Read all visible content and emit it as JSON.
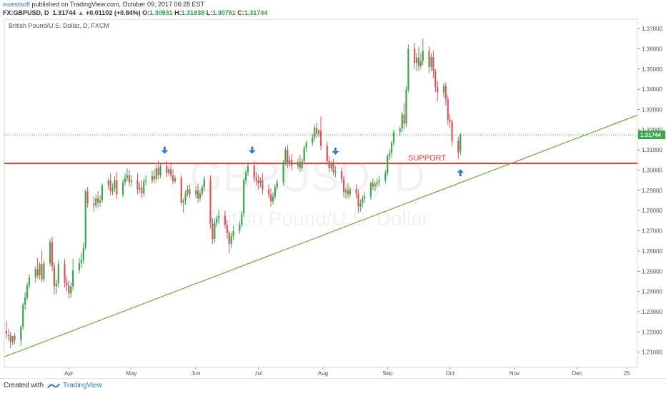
{
  "header": {
    "author": "investsoft",
    "published": " published on TradingView.com, October 09, 2017 06:28 EST",
    "symbol": "FX:GBPUSD, D",
    "last": "1.31744",
    "change": "+0.01102 (+0.84%)",
    "o_label": "O:",
    "o": "1.30931",
    "h_label": "H:",
    "h": "1.31838",
    "l_label": "L:",
    "l": "1.30751",
    "c_label": "C:",
    "c": "1.31744"
  },
  "footer": {
    "created_with": "Created with",
    "brand": "TradingView"
  },
  "colors": {
    "up": "#3aa64a",
    "down": "#e0505c",
    "support": "#e53935",
    "trend": "#6aaa3c",
    "arrow": "#2f7fc8",
    "price_tag": "#3aa64a"
  },
  "chart_data": {
    "type": "candlestick",
    "title": "British Pound/U.S. Dollar, D, FXCM",
    "watermark": "GBPUSD, D",
    "watermark_sub": "British Pound/U.S. Dollar",
    "y_ticks": [
      "1.21000",
      "1.22000",
      "1.23000",
      "1.24000",
      "1.25000",
      "1.26000",
      "1.27000",
      "1.28000",
      "1.29000",
      "1.30000",
      "1.31000",
      "1.32000",
      "1.33000",
      "1.34000",
      "1.35000",
      "1.36000",
      "1.37000"
    ],
    "ylim": [
      1.2025,
      1.3746
    ],
    "x_ticks": [
      "Apr",
      "May",
      "Jun",
      "Jul",
      "Aug",
      "Sep",
      "Oct",
      "Nov",
      "Dec",
      "25"
    ],
    "x_tick_days": [
      31,
      61,
      92,
      122,
      153,
      184,
      214,
      245,
      275,
      299
    ],
    "xlim": [
      0,
      304
    ],
    "last_price": 1.31744,
    "last_price_label": "1.31744",
    "support": {
      "value": 1.3033,
      "label": "SUPPORT"
    },
    "trendline": {
      "from": [
        0,
        1.2077
      ],
      "to": [
        304,
        1.3272
      ]
    },
    "arrows": [
      {
        "day": 77,
        "price": 1.3088,
        "dir": "down"
      },
      {
        "day": 119,
        "price": 1.3088,
        "dir": "down"
      },
      {
        "day": 159,
        "price": 1.3083,
        "dir": "down"
      },
      {
        "day": 219,
        "price": 1.2998,
        "dir": "up"
      }
    ],
    "candles": [
      [
        1,
        1.2205,
        1.2255,
        1.219,
        1.2165
      ],
      [
        2,
        1.218,
        1.2215,
        1.2185,
        1.2155
      ],
      [
        3,
        1.2185,
        1.22,
        1.215,
        1.212
      ],
      [
        4,
        1.215,
        1.2165,
        1.218,
        1.2135
      ],
      [
        5,
        1.218,
        1.2195,
        1.216,
        1.214
      ],
      [
        8,
        1.216,
        1.2235,
        1.2225,
        1.213
      ],
      [
        9,
        1.2225,
        1.2345,
        1.2335,
        1.221
      ],
      [
        10,
        1.2335,
        1.2395,
        1.237,
        1.231
      ],
      [
        11,
        1.237,
        1.2445,
        1.243,
        1.2355
      ],
      [
        12,
        1.243,
        1.2485,
        1.247,
        1.2415
      ],
      [
        15,
        1.247,
        1.2525,
        1.251,
        1.2445
      ],
      [
        16,
        1.251,
        1.2565,
        1.248,
        1.2465
      ],
      [
        17,
        1.248,
        1.2545,
        1.2535,
        1.246
      ],
      [
        18,
        1.2535,
        1.2605,
        1.246,
        1.2445
      ],
      [
        19,
        1.246,
        1.2555,
        1.254,
        1.2445
      ],
      [
        22,
        1.254,
        1.266,
        1.2645,
        1.2525
      ],
      [
        23,
        1.2645,
        1.267,
        1.2525,
        1.25
      ],
      [
        24,
        1.2525,
        1.2545,
        1.2425,
        1.2385
      ],
      [
        25,
        1.2425,
        1.246,
        1.244,
        1.2385
      ],
      [
        26,
        1.244,
        1.2555,
        1.2535,
        1.242
      ],
      [
        29,
        1.2535,
        1.256,
        1.2445,
        1.242
      ],
      [
        30,
        1.2445,
        1.2475,
        1.243,
        1.24
      ],
      [
        31,
        1.243,
        1.2455,
        1.239,
        1.2365
      ],
      [
        32,
        1.239,
        1.2445,
        1.2425,
        1.237
      ],
      [
        33,
        1.2425,
        1.256,
        1.2505,
        1.2405
      ],
      [
        36,
        1.2505,
        1.2565,
        1.254,
        1.249
      ],
      [
        37,
        1.254,
        1.259,
        1.2555,
        1.2515
      ],
      [
        38,
        1.2555,
        1.264,
        1.2615,
        1.2535
      ],
      [
        39,
        1.2615,
        1.2905,
        1.2895,
        1.2605
      ],
      [
        40,
        1.2895,
        1.2915,
        1.2835,
        1.2815
      ],
      [
        43,
        1.2835,
        1.287,
        1.2825,
        1.2795
      ],
      [
        44,
        1.2825,
        1.288,
        1.286,
        1.281
      ],
      [
        45,
        1.286,
        1.2895,
        1.284,
        1.2815
      ],
      [
        46,
        1.284,
        1.2875,
        1.285,
        1.282
      ],
      [
        47,
        1.285,
        1.2935,
        1.2925,
        1.284
      ],
      [
        50,
        1.2925,
        1.296,
        1.295,
        1.2905
      ],
      [
        51,
        1.295,
        1.2985,
        1.2895,
        1.2875
      ],
      [
        52,
        1.2895,
        1.2935,
        1.291,
        1.2875
      ],
      [
        53,
        1.291,
        1.297,
        1.295,
        1.289
      ],
      [
        54,
        1.295,
        1.299,
        1.288,
        1.286
      ],
      [
        57,
        1.288,
        1.2955,
        1.294,
        1.2865
      ],
      [
        58,
        1.294,
        1.2985,
        1.296,
        1.2925
      ],
      [
        59,
        1.296,
        1.301,
        1.2975,
        1.2945
      ],
      [
        60,
        1.2975,
        1.3,
        1.294,
        1.292
      ],
      [
        61,
        1.294,
        1.2975,
        1.295,
        1.292
      ],
      [
        64,
        1.295,
        1.2985,
        1.2905,
        1.288
      ],
      [
        65,
        1.2905,
        1.294,
        1.2915,
        1.2885
      ],
      [
        66,
        1.2915,
        1.295,
        1.2885,
        1.286
      ],
      [
        67,
        1.2885,
        1.296,
        1.2945,
        1.287
      ],
      [
        68,
        1.2945,
        1.2975,
        1.295,
        1.2925
      ],
      [
        71,
        1.295,
        1.2995,
        1.297,
        1.2935
      ],
      [
        72,
        1.297,
        1.3005,
        1.2955,
        1.2935
      ],
      [
        73,
        1.2955,
        1.3025,
        1.301,
        1.294
      ],
      [
        74,
        1.301,
        1.3045,
        1.2975,
        1.2955
      ],
      [
        75,
        1.2975,
        1.303,
        1.302,
        1.296
      ],
      [
        78,
        1.302,
        1.3045,
        1.2985,
        1.2965
      ],
      [
        79,
        1.2985,
        1.302,
        1.3005,
        1.297
      ],
      [
        80,
        1.3005,
        1.304,
        1.2975,
        1.296
      ],
      [
        81,
        1.2975,
        1.3005,
        1.2945,
        1.293
      ],
      [
        82,
        1.2945,
        1.2975,
        1.296,
        1.2935
      ],
      [
        85,
        1.296,
        1.2975,
        1.284,
        1.2825
      ],
      [
        86,
        1.284,
        1.286,
        1.285,
        1.279
      ],
      [
        87,
        1.285,
        1.29,
        1.2885,
        1.283
      ],
      [
        88,
        1.2885,
        1.2925,
        1.2905,
        1.287
      ],
      [
        89,
        1.2905,
        1.293,
        1.288,
        1.286
      ],
      [
        92,
        1.288,
        1.292,
        1.29,
        1.286
      ],
      [
        93,
        1.29,
        1.2935,
        1.286,
        1.284
      ],
      [
        94,
        1.286,
        1.29,
        1.2885,
        1.2845
      ],
      [
        95,
        1.2885,
        1.293,
        1.2915,
        1.287
      ],
      [
        96,
        1.2915,
        1.297,
        1.2955,
        1.2895
      ],
      [
        99,
        1.2955,
        1.2975,
        1.2735,
        1.271
      ],
      [
        100,
        1.2735,
        1.276,
        1.266,
        1.2635
      ],
      [
        101,
        1.266,
        1.276,
        1.274,
        1.264
      ],
      [
        102,
        1.274,
        1.2775,
        1.276,
        1.272
      ],
      [
        103,
        1.276,
        1.2805,
        1.2775,
        1.2735
      ],
      [
        106,
        1.2775,
        1.28,
        1.273,
        1.271
      ],
      [
        107,
        1.273,
        1.2755,
        1.269,
        1.266
      ],
      [
        108,
        1.269,
        1.27,
        1.2635,
        1.259
      ],
      [
        109,
        1.2635,
        1.269,
        1.2675,
        1.2615
      ],
      [
        110,
        1.2675,
        1.2725,
        1.27,
        1.2655
      ],
      [
        113,
        1.27,
        1.2745,
        1.273,
        1.2685
      ],
      [
        114,
        1.273,
        1.28,
        1.2785,
        1.2715
      ],
      [
        115,
        1.2785,
        1.296,
        1.295,
        1.277
      ],
      [
        116,
        1.295,
        1.3,
        1.299,
        1.293
      ],
      [
        117,
        1.299,
        1.304,
        1.302,
        1.297
      ],
      [
        120,
        1.302,
        1.3045,
        1.296,
        1.294
      ],
      [
        121,
        1.296,
        1.299,
        1.295,
        1.2925
      ],
      [
        122,
        1.295,
        1.2975,
        1.2935,
        1.2905
      ],
      [
        123,
        1.2935,
        1.2965,
        1.295,
        1.2915
      ],
      [
        124,
        1.295,
        1.2985,
        1.2905,
        1.288
      ],
      [
        127,
        1.2905,
        1.293,
        1.288,
        1.286
      ],
      [
        128,
        1.288,
        1.291,
        1.2845,
        1.282
      ],
      [
        129,
        1.2845,
        1.289,
        1.287,
        1.283
      ],
      [
        130,
        1.287,
        1.293,
        1.2915,
        1.2855
      ],
      [
        131,
        1.2915,
        1.2955,
        1.294,
        1.29
      ],
      [
        134,
        1.294,
        1.305,
        1.304,
        1.2925
      ],
      [
        135,
        1.304,
        1.3115,
        1.31,
        1.3025
      ],
      [
        136,
        1.31,
        1.3125,
        1.303,
        1.301
      ],
      [
        137,
        1.303,
        1.307,
        1.305,
        1.3015
      ],
      [
        138,
        1.305,
        1.308,
        1.302,
        1.3
      ],
      [
        141,
        1.302,
        1.3055,
        1.304,
        1.3005
      ],
      [
        142,
        1.304,
        1.3075,
        1.301,
        1.299
      ],
      [
        143,
        1.301,
        1.306,
        1.3045,
        1.2995
      ],
      [
        144,
        1.3045,
        1.312,
        1.311,
        1.303
      ],
      [
        145,
        1.311,
        1.3145,
        1.3135,
        1.309
      ],
      [
        148,
        1.3135,
        1.318,
        1.316,
        1.312
      ],
      [
        149,
        1.316,
        1.3225,
        1.321,
        1.3145
      ],
      [
        150,
        1.321,
        1.3235,
        1.318,
        1.316
      ],
      [
        151,
        1.318,
        1.3205,
        1.3195,
        1.3165
      ],
      [
        152,
        1.3195,
        1.3265,
        1.312,
        1.31
      ],
      [
        155,
        1.312,
        1.314,
        1.3045,
        1.3025
      ],
      [
        156,
        1.3045,
        1.307,
        1.301,
        1.299
      ],
      [
        157,
        1.301,
        1.3045,
        1.303,
        1.2995
      ],
      [
        158,
        1.303,
        1.3055,
        1.299,
        1.2975
      ],
      [
        159,
        1.299,
        1.302,
        1.2995,
        1.2965
      ],
      [
        162,
        1.2995,
        1.3015,
        1.2955,
        1.2935
      ],
      [
        163,
        1.2955,
        1.297,
        1.289,
        1.2865
      ],
      [
        164,
        1.289,
        1.2915,
        1.29,
        1.286
      ],
      [
        165,
        1.29,
        1.2935,
        1.288,
        1.286
      ],
      [
        166,
        1.288,
        1.292,
        1.2905,
        1.2865
      ],
      [
        169,
        1.2905,
        1.293,
        1.2885,
        1.286
      ],
      [
        170,
        1.2885,
        1.2905,
        1.282,
        1.279
      ],
      [
        171,
        1.282,
        1.2855,
        1.2835,
        1.2795
      ],
      [
        172,
        1.2835,
        1.2875,
        1.286,
        1.2815
      ],
      [
        173,
        1.286,
        1.289,
        1.287,
        1.284
      ],
      [
        176,
        1.287,
        1.2945,
        1.2935,
        1.2855
      ],
      [
        177,
        1.2935,
        1.296,
        1.292,
        1.29
      ],
      [
        178,
        1.292,
        1.2945,
        1.293,
        1.2895
      ],
      [
        179,
        1.293,
        1.296,
        1.294,
        1.2915
      ],
      [
        180,
        1.294,
        1.297,
        1.295,
        1.292
      ],
      [
        183,
        1.295,
        1.3,
        1.2985,
        1.2935
      ],
      [
        184,
        1.2985,
        1.308,
        1.307,
        1.297
      ],
      [
        185,
        1.307,
        1.3105,
        1.3085,
        1.305
      ],
      [
        186,
        1.3085,
        1.3145,
        1.3135,
        1.306
      ],
      [
        187,
        1.3135,
        1.32,
        1.319,
        1.312
      ],
      [
        190,
        1.319,
        1.3215,
        1.3205,
        1.317
      ],
      [
        191,
        1.3205,
        1.329,
        1.3275,
        1.3185
      ],
      [
        192,
        1.3275,
        1.333,
        1.323,
        1.32
      ],
      [
        193,
        1.323,
        1.3415,
        1.34,
        1.3215
      ],
      [
        194,
        1.34,
        1.362,
        1.36,
        1.3385
      ],
      [
        197,
        1.36,
        1.363,
        1.353,
        1.35
      ],
      [
        198,
        1.353,
        1.358,
        1.3555,
        1.349
      ],
      [
        199,
        1.3555,
        1.361,
        1.3515,
        1.349
      ],
      [
        200,
        1.3515,
        1.358,
        1.354,
        1.35
      ],
      [
        201,
        1.354,
        1.365,
        1.359,
        1.352
      ],
      [
        204,
        1.359,
        1.361,
        1.351,
        1.348
      ],
      [
        205,
        1.351,
        1.358,
        1.356,
        1.349
      ],
      [
        206,
        1.356,
        1.359,
        1.349,
        1.3455
      ],
      [
        207,
        1.349,
        1.35,
        1.341,
        1.3385
      ],
      [
        208,
        1.341,
        1.344,
        1.3385,
        1.334
      ],
      [
        211,
        1.3385,
        1.343,
        1.3415,
        1.336
      ],
      [
        212,
        1.3415,
        1.3435,
        1.335,
        1.332
      ],
      [
        213,
        1.335,
        1.337,
        1.325,
        1.3225
      ],
      [
        214,
        1.325,
        1.3275,
        1.324,
        1.321
      ],
      [
        215,
        1.324,
        1.325,
        1.3145,
        1.312
      ],
      [
        218,
        1.3145,
        1.3165,
        1.3085,
        1.3055
      ],
      [
        219,
        1.3093,
        1.3184,
        1.3174,
        1.3075
      ]
    ]
  }
}
